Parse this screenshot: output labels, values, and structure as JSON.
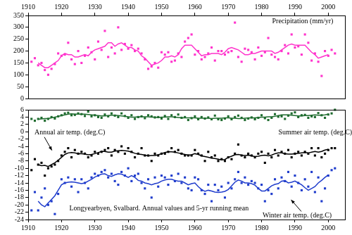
{
  "chart_data": [
    {
      "type": "line",
      "x": [
        1911,
        1912,
        1913,
        1914,
        1915,
        1916,
        1917,
        1918,
        1919,
        1920,
        1921,
        1922,
        1923,
        1924,
        1925,
        1926,
        1927,
        1928,
        1929,
        1930,
        1931,
        1932,
        1933,
        1934,
        1935,
        1936,
        1937,
        1938,
        1939,
        1940,
        1941,
        1942,
        1943,
        1944,
        1945,
        1946,
        1947,
        1948,
        1949,
        1950,
        1951,
        1952,
        1953,
        1954,
        1955,
        1956,
        1957,
        1958,
        1959,
        1960,
        1961,
        1962,
        1963,
        1964,
        1965,
        1966,
        1967,
        1968,
        1969,
        1970,
        1971,
        1972,
        1973,
        1974,
        1975,
        1976,
        1977,
        1978,
        1979,
        1980,
        1981,
        1982,
        1983,
        1984,
        1985,
        1986,
        1987,
        1988,
        1989,
        1990,
        1991,
        1992,
        1993,
        1994,
        1995,
        1996,
        1997,
        1998,
        1999,
        2000,
        2001,
        2002
      ],
      "xlim": [
        1910,
        2005
      ],
      "xticks": [
        1910,
        1920,
        1930,
        1940,
        1950,
        1960,
        1970,
        1980,
        1990,
        2000
      ],
      "ylim": [
        0,
        350
      ],
      "yticks": [
        0,
        50,
        100,
        150,
        200,
        250,
        300,
        350
      ],
      "grid": false,
      "series": [
        {
          "name": "Precipitation (mm/yr)",
          "type": "scatter",
          "marker": "square",
          "color": "#ff33cc",
          "values": [
            155,
            170,
            140,
            150,
            120,
            100,
            125,
            145,
            190,
            180,
            185,
            235,
            165,
            145,
            200,
            150,
            180,
            215,
            195,
            165,
            240,
            205,
            285,
            175,
            215,
            190,
            300,
            205,
            230,
            210,
            225,
            200,
            210,
            190,
            165,
            125,
            135,
            150,
            130,
            195,
            185,
            195,
            155,
            160,
            190,
            175,
            240,
            255,
            270,
            185,
            200,
            165,
            175,
            190,
            215,
            160,
            200,
            200,
            185,
            195,
            200,
            320,
            175,
            155,
            210,
            205,
            195,
            165,
            215,
            180,
            195,
            255,
            185,
            175,
            165,
            200,
            225,
            190,
            270,
            215,
            220,
            185,
            270,
            235,
            160,
            190,
            155,
            95,
            200,
            180,
            205,
            190
          ]
        },
        {
          "type": "line",
          "line_style": "solid",
          "color": "#ff33cc",
          "values": [
            null,
            null,
            150,
            140,
            130,
            130,
            140,
            150,
            160,
            180,
            190,
            185,
            185,
            175,
            175,
            180,
            185,
            180,
            195,
            205,
            210,
            215,
            220,
            235,
            235,
            220,
            230,
            235,
            225,
            215,
            215,
            205,
            200,
            180,
            170,
            155,
            140,
            145,
            150,
            160,
            175,
            175,
            180,
            175,
            185,
            210,
            225,
            225,
            225,
            210,
            195,
            180,
            185,
            185,
            190,
            190,
            190,
            185,
            195,
            210,
            215,
            210,
            205,
            195,
            185,
            185,
            190,
            190,
            195,
            200,
            200,
            200,
            200,
            190,
            195,
            205,
            215,
            225,
            230,
            225,
            225,
            225,
            225,
            210,
            195,
            185,
            170,
            175,
            180,
            185,
            null,
            null
          ]
        }
      ]
    },
    {
      "type": "line",
      "x": [
        1911,
        1912,
        1913,
        1914,
        1915,
        1916,
        1917,
        1918,
        1919,
        1920,
        1921,
        1922,
        1923,
        1924,
        1925,
        1926,
        1927,
        1928,
        1929,
        1930,
        1931,
        1932,
        1933,
        1934,
        1935,
        1936,
        1937,
        1938,
        1939,
        1940,
        1941,
        1942,
        1943,
        1944,
        1945,
        1946,
        1947,
        1948,
        1949,
        1950,
        1951,
        1952,
        1953,
        1954,
        1955,
        1956,
        1957,
        1958,
        1959,
        1960,
        1961,
        1962,
        1963,
        1964,
        1965,
        1966,
        1967,
        1968,
        1969,
        1970,
        1971,
        1972,
        1973,
        1974,
        1975,
        1976,
        1977,
        1978,
        1979,
        1980,
        1981,
        1982,
        1983,
        1984,
        1985,
        1986,
        1987,
        1988,
        1989,
        1990,
        1991,
        1992,
        1993,
        1994,
        1995,
        1996,
        1997,
        1998,
        1999,
        2000,
        2001,
        2002
      ],
      "xlim": [
        1910,
        2005
      ],
      "xticks": [
        1910,
        1920,
        1930,
        1940,
        1950,
        1960,
        1970,
        1980,
        1990,
        2000
      ],
      "ylim": [
        -24,
        6
      ],
      "yticks": [
        6,
        4,
        2,
        0,
        -2,
        -4,
        -6,
        -8,
        -10,
        -12,
        -14,
        -16,
        -18,
        -20,
        -22,
        -24
      ],
      "grid": false,
      "annotations": [
        "Longyearbyen, Svalbard. Annual values and 5-yr running mean"
      ],
      "series": [
        {
          "name": "Summer air temp. (deg.C)",
          "type": "scatter",
          "marker": "square",
          "color": "#1e6b2e",
          "values": [
            3.5,
            3,
            3.5,
            3.8,
            3,
            3.5,
            4,
            3.6,
            4.2,
            4.5,
            5,
            5.2,
            4.5,
            4.6,
            5,
            4.8,
            4.3,
            5.5,
            4.2,
            4.5,
            4,
            3.8,
            4.7,
            4.2,
            5,
            4.4,
            4,
            5,
            4.3,
            3.8,
            4.5,
            3.5,
            4,
            4.2,
            3.7,
            4.5,
            4.2,
            3.9,
            4,
            3.6,
            4.3,
            3.5,
            4.5,
            4,
            4.7,
            3.8,
            4,
            3.2,
            3.7,
            4.2,
            3.4,
            4,
            3.6,
            3.9,
            3.4,
            4.4,
            3.4,
            3.2,
            3.6,
            4.2,
            3.4,
            4,
            4.4,
            3.8,
            3.2,
            3.6,
            3.9,
            3.4,
            3.8,
            4.5,
            3.7,
            3.2,
            3.8,
            4.8,
            4.1,
            4.2,
            3.5,
            4.4,
            5,
            5.3,
            4,
            4.5,
            4.6,
            3.8,
            4.2,
            4,
            5.1,
            4.5,
            3.8,
            4.7,
            5,
            6
          ]
        },
        {
          "type": "line",
          "line_style": "solid",
          "color": "#1e6b2e",
          "values": [
            null,
            null,
            3.4,
            3.5,
            3.6,
            3.6,
            3.8,
            4,
            4.2,
            4.4,
            4.6,
            4.8,
            4.9,
            4.8,
            4.8,
            4.8,
            4.8,
            4.7,
            4.6,
            4.5,
            4.4,
            4.3,
            4.3,
            4.4,
            4.5,
            4.5,
            4.4,
            4.3,
            4.2,
            4.1,
            4,
            4,
            4.1,
            4.1,
            4.1,
            4.1,
            4,
            4,
            3.9,
            4,
            4,
            4.1,
            4.1,
            4,
            3.9,
            3.8,
            3.8,
            3.8,
            3.8,
            3.8,
            3.7,
            3.7,
            3.7,
            3.7,
            3.6,
            3.7,
            3.7,
            3.7,
            3.8,
            3.8,
            3.7,
            3.7,
            3.6,
            3.6,
            3.7,
            3.8,
            3.8,
            3.8,
            3.9,
            4,
            4,
            4.1,
            4.1,
            4.2,
            4.4,
            4.6,
            4.6,
            4.6,
            4.5,
            4.4,
            4.3,
            4.3,
            4.4,
            4.4,
            4.5,
            4.6,
            4.5,
            4.5,
            4.6,
            4.8,
            null,
            null
          ]
        },
        {
          "name": "Annual air temp. (deg.C)",
          "type": "scatter",
          "marker": "square",
          "color": "#000000",
          "values": [
            -10.5,
            -7.5,
            -9,
            -8.5,
            -12,
            -10,
            -9.5,
            -9,
            -8,
            -6.5,
            -5.5,
            -4.5,
            -7,
            -5,
            -6,
            -5.5,
            -6,
            -7,
            -6.5,
            -5.5,
            -6,
            -5.5,
            -5,
            -4.5,
            -6.5,
            -5,
            -5.5,
            -4,
            -6,
            -4.5,
            -5.5,
            -7,
            -6,
            -4.5,
            -6.5,
            -6.5,
            -8,
            -6,
            -6.5,
            -6,
            -6,
            -5.5,
            -4.5,
            -5.5,
            -5,
            -6,
            -6.5,
            -6.5,
            -6.5,
            -5,
            -6,
            -6.5,
            -8,
            -5.5,
            -7,
            -6.5,
            -8,
            -7.5,
            -8,
            -7,
            -7.5,
            -6,
            -3.5,
            -6.5,
            -7,
            -6,
            -6.5,
            -7,
            -6,
            -5.5,
            -8.5,
            -6,
            -7,
            -5,
            -6.5,
            -5.5,
            -6,
            -5,
            -7,
            -6,
            -5.5,
            -6.5,
            -5.5,
            -6,
            -4.5,
            -6.5,
            -4.5,
            -7,
            -6,
            -5,
            -4.5,
            -4.5
          ]
        },
        {
          "type": "line",
          "line_style": "solid",
          "color": "#000000",
          "values": [
            null,
            null,
            -9,
            -9.3,
            -9.2,
            -9.5,
            -9,
            -8.5,
            -7.8,
            -7,
            -6.2,
            -5.8,
            -5.7,
            -5.8,
            -6,
            -6,
            -6.1,
            -6.3,
            -6.2,
            -6,
            -5.7,
            -5.4,
            -5.4,
            -5.6,
            -5.6,
            -5.3,
            -5.2,
            -5.1,
            -5.2,
            -5.3,
            -5.6,
            -5.9,
            -6.1,
            -6.2,
            -6.4,
            -6.6,
            -6.5,
            -6.5,
            -6.3,
            -6,
            -5.7,
            -5.5,
            -5.5,
            -5.6,
            -5.8,
            -6,
            -6.2,
            -6.4,
            -6.3,
            -6,
            -6.2,
            -6.6,
            -6.8,
            -7,
            -7.2,
            -7.3,
            -7.5,
            -7.7,
            -7.6,
            -7,
            -6.7,
            -6.3,
            -6.2,
            -6.4,
            -6.5,
            -6.4,
            -6.6,
            -6.8,
            -6.7,
            -6.5,
            -6.4,
            -6.6,
            -6.4,
            -6,
            -5.8,
            -5.8,
            -6,
            -6.1,
            -6.1,
            -6,
            -5.9,
            -5.8,
            -5.7,
            -5.8,
            -5.6,
            -5.4,
            -5.6,
            -5.4,
            -5,
            -4.8,
            null,
            null
          ]
        },
        {
          "name": "Winter air temp. (deg.C)",
          "type": "scatter",
          "marker": "square",
          "color": "#1f3ccc",
          "values": [
            -21.5,
            -16.5,
            -21.5,
            -18,
            -15.5,
            -20,
            -19,
            -22.5,
            -17,
            -13,
            -14,
            -12.5,
            -15,
            -13,
            -16.5,
            -13,
            -14,
            -15.5,
            -12.5,
            -11.5,
            -12,
            -11,
            -10.5,
            -12.5,
            -11.5,
            -13.5,
            -14.5,
            -11,
            -12,
            -10,
            -13.5,
            -12,
            -11.5,
            -14,
            -15.5,
            -13,
            -18,
            -12.5,
            -15,
            -12,
            -12.5,
            -14.5,
            -12,
            -13.5,
            -11.5,
            -14,
            -12.5,
            -15.5,
            -16,
            -12.5,
            -13,
            -16,
            -17,
            -14.5,
            -19,
            -14.5,
            -16,
            -15,
            -18,
            -14,
            -15.5,
            -13,
            -11,
            -14,
            -12.5,
            -14.5,
            -13.5,
            -14,
            -15.5,
            -14.5,
            -19,
            -16,
            -17,
            -13,
            -15.5,
            -12.5,
            -13.5,
            -11,
            -15,
            -12,
            -14,
            -16,
            -13,
            -15,
            -11,
            -16.5,
            -12.5,
            -19,
            -15.5,
            -12,
            -10.5,
            -10
          ]
        },
        {
          "type": "line",
          "line_style": "solid",
          "color": "#1f3ccc",
          "values": [
            null,
            null,
            -19,
            -20,
            -20.5,
            -19.5,
            -18.5,
            -17.5,
            -16,
            -14.5,
            -14,
            -13.8,
            -13.7,
            -13.8,
            -14,
            -14.2,
            -14,
            -13.5,
            -13,
            -12.4,
            -12,
            -11.6,
            -11.5,
            -12,
            -12.2,
            -11.8,
            -11.5,
            -11.6,
            -12,
            -12.5,
            -12,
            -12.5,
            -13.3,
            -13.5,
            -14,
            -14.2,
            -14.5,
            -14.2,
            -14,
            -13.5,
            -13.2,
            -13,
            -13,
            -13.3,
            -13.5,
            -13.5,
            -14,
            -14.5,
            -14.2,
            -14,
            -15,
            -15.8,
            -16.3,
            -16,
            -16.2,
            -16.5,
            -16.6,
            -16.5,
            -16.3,
            -15.8,
            -14.8,
            -13.8,
            -13.2,
            -13.5,
            -14,
            -14,
            -14.2,
            -14.6,
            -15.5,
            -16.2,
            -16.2,
            -15.5,
            -14.8,
            -14.4,
            -14.2,
            -13.5,
            -13.4,
            -14,
            -13.8,
            -13.5,
            -14,
            -14.5,
            -15.3,
            -16,
            -15.5,
            -15,
            -14,
            -13.3,
            -12.5,
            -11.8,
            null,
            null
          ]
        }
      ]
    }
  ]
}
